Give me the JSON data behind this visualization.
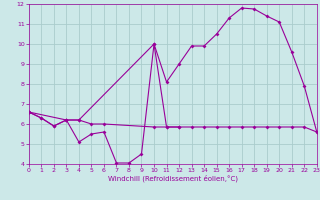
{
  "xlabel": "Windchill (Refroidissement éolien,°C)",
  "bg_color": "#cce8e8",
  "line_color": "#990099",
  "grid_color": "#aacccc",
  "xlim": [
    0,
    23
  ],
  "ylim": [
    4,
    12
  ],
  "xticks": [
    0,
    1,
    2,
    3,
    4,
    5,
    6,
    7,
    8,
    9,
    10,
    11,
    12,
    13,
    14,
    15,
    16,
    17,
    18,
    19,
    20,
    21,
    22,
    23
  ],
  "yticks": [
    4,
    5,
    6,
    7,
    8,
    9,
    10,
    11,
    12
  ],
  "line_flat_x": [
    0,
    1,
    2,
    3,
    4,
    5,
    6,
    10,
    11,
    12,
    13,
    14,
    15,
    16,
    17,
    18,
    19,
    20,
    21,
    22,
    23
  ],
  "line_flat_y": [
    6.6,
    6.3,
    5.9,
    6.2,
    6.2,
    6.0,
    6.0,
    5.85,
    5.85,
    5.85,
    5.85,
    5.85,
    5.85,
    5.85,
    5.85,
    5.85,
    5.85,
    5.85,
    5.85,
    5.85,
    5.6
  ],
  "line_zigzag_x": [
    0,
    1,
    2,
    3,
    4,
    5,
    6,
    7,
    8,
    9,
    10,
    11,
    12
  ],
  "line_zigzag_y": [
    6.6,
    6.3,
    5.9,
    6.2,
    5.1,
    5.5,
    5.6,
    4.05,
    4.05,
    4.5,
    10.0,
    5.85,
    5.85
  ],
  "line_rise_x": [
    0,
    3,
    4,
    10,
    11,
    12,
    13,
    14,
    15,
    16,
    17,
    18,
    19,
    20,
    21,
    22,
    23
  ],
  "line_rise_y": [
    6.6,
    6.2,
    6.2,
    10.0,
    8.1,
    9.0,
    9.9,
    9.9,
    10.5,
    11.3,
    11.8,
    11.75,
    11.4,
    11.1,
    9.6,
    7.9,
    5.6
  ]
}
